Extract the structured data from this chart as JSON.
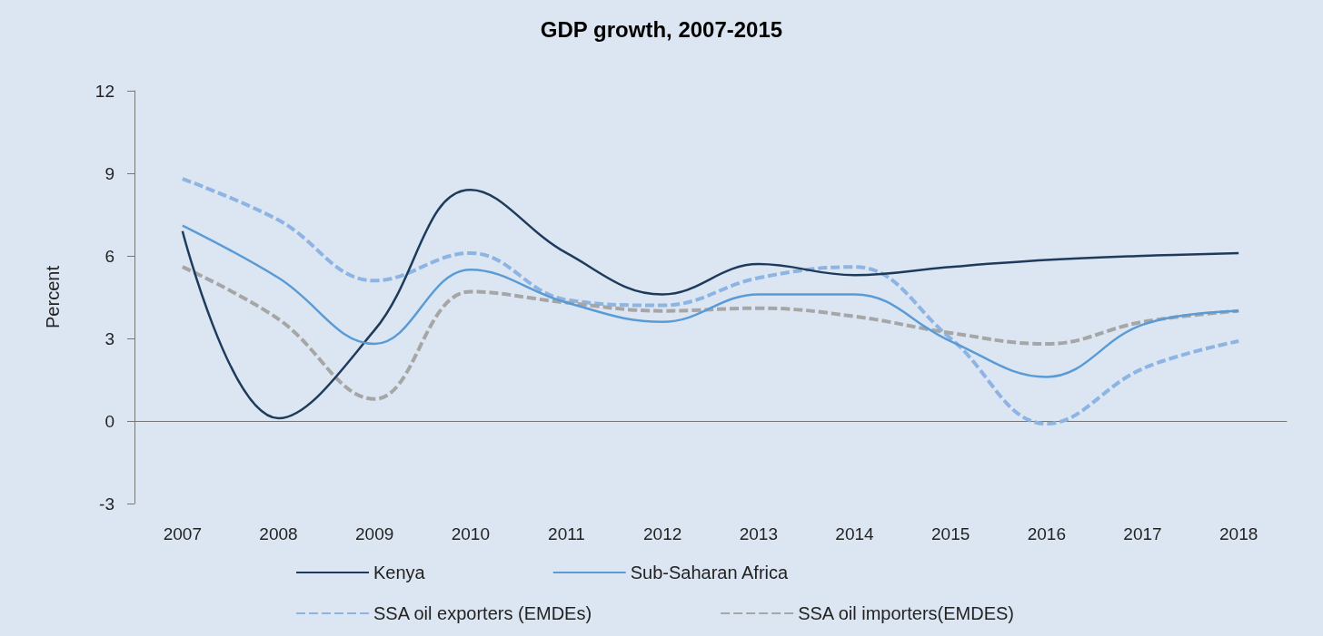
{
  "chart_data": {
    "type": "line",
    "title": "GDP growth, 2007-2015",
    "ylabel": "Percent",
    "categories": [
      "2007",
      "2008",
      "2009",
      "2010",
      "2011",
      "2012",
      "2013",
      "2014",
      "2015",
      "2016",
      "2017",
      "2018"
    ],
    "series": [
      {
        "name": "Kenya",
        "color": "#1f3b5c",
        "line_style": "solid",
        "values": [
          6.9,
          0.1,
          3.3,
          8.4,
          6.1,
          4.6,
          5.7,
          5.3,
          5.6,
          5.85,
          6.0,
          6.1
        ]
      },
      {
        "name": "Sub-Saharan Africa",
        "color": "#5b9bd5",
        "line_style": "solid",
        "values": [
          7.1,
          5.2,
          2.8,
          5.5,
          4.3,
          3.6,
          4.6,
          4.6,
          2.9,
          1.6,
          3.5,
          4.0
        ]
      },
      {
        "name": "SSA oil exporters (EMDEs)",
        "color": "#8db4e2",
        "line_style": "dashed",
        "values": [
          8.8,
          7.3,
          5.1,
          6.1,
          4.4,
          4.2,
          5.2,
          5.6,
          3.0,
          -0.1,
          1.9,
          2.9
        ]
      },
      {
        "name": "SSA oil importers(EMDES)",
        "color": "#a6a6a6",
        "line_style": "dashed",
        "values": [
          5.6,
          3.7,
          0.8,
          4.7,
          4.3,
          4.0,
          4.1,
          3.8,
          3.2,
          2.8,
          3.6,
          4.0
        ]
      }
    ],
    "ylim": [
      -3,
      12
    ],
    "yticks": [
      -3,
      0,
      3,
      6,
      9,
      12
    ],
    "marker": "none",
    "legend": "bottom"
  }
}
